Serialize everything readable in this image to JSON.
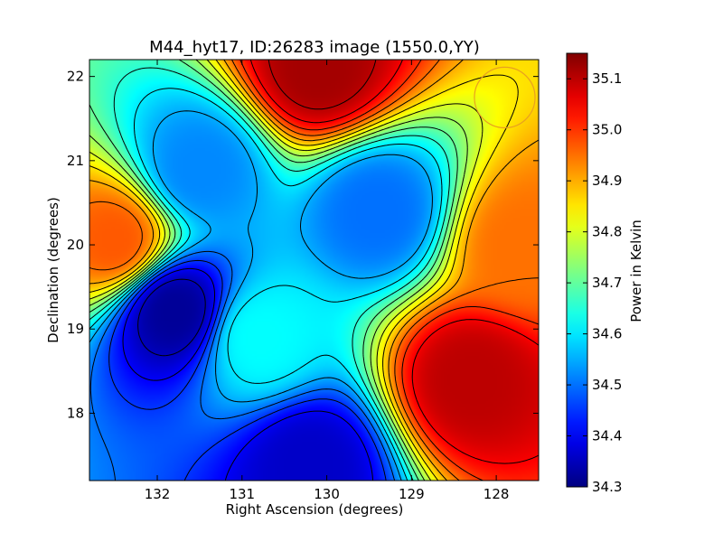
{
  "chart_data": {
    "type": "heatmap",
    "title": "M44_hyt17, ID:26283 image (1550.0,YY)",
    "xlabel": "Right Ascension (degrees)",
    "ylabel": "Declination (degrees)",
    "colorbar_label": "Power in Kelvin",
    "xlim": [
      132.8,
      127.5
    ],
    "ylim": [
      17.2,
      22.2
    ],
    "x_ticks": [
      132,
      131,
      130,
      129,
      128
    ],
    "y_ticks": [
      18,
      19,
      20,
      21,
      22
    ],
    "colorbar_range": [
      34.3,
      35.15
    ],
    "colorbar_ticks": [
      34.3,
      34.4,
      34.5,
      34.6,
      34.7,
      34.8,
      34.9,
      35.0,
      35.1
    ],
    "colormap": "jet",
    "contour_lines": true,
    "contour_color": "#000000",
    "beam_marker": {
      "ra": 127.9,
      "dec": 21.75,
      "radius_deg": 0.36,
      "color": "#e8a020"
    },
    "features": [
      {
        "kind": "maximum",
        "ra": 130.1,
        "dec": 22.1,
        "value": 35.12
      },
      {
        "kind": "maximum",
        "ra": 128.3,
        "dec": 18.4,
        "value": 35.1
      },
      {
        "kind": "maximum",
        "ra": 127.7,
        "dec": 20.0,
        "value": 34.95
      },
      {
        "kind": "maximum",
        "ra": 132.5,
        "dec": 20.05,
        "value": 34.97
      },
      {
        "kind": "minimum",
        "ra": 131.8,
        "dec": 19.22,
        "value": 34.32
      },
      {
        "kind": "minimum",
        "ra": 130.2,
        "dec": 17.4,
        "value": 34.36
      },
      {
        "kind": "minimum",
        "ra": 129.4,
        "dec": 20.4,
        "value": 34.5
      },
      {
        "kind": "minimum",
        "ra": 131.5,
        "dec": 20.9,
        "value": 34.52
      },
      {
        "kind": "minimum",
        "ra": 130.8,
        "dec": 18.9,
        "value": 34.62
      }
    ]
  }
}
